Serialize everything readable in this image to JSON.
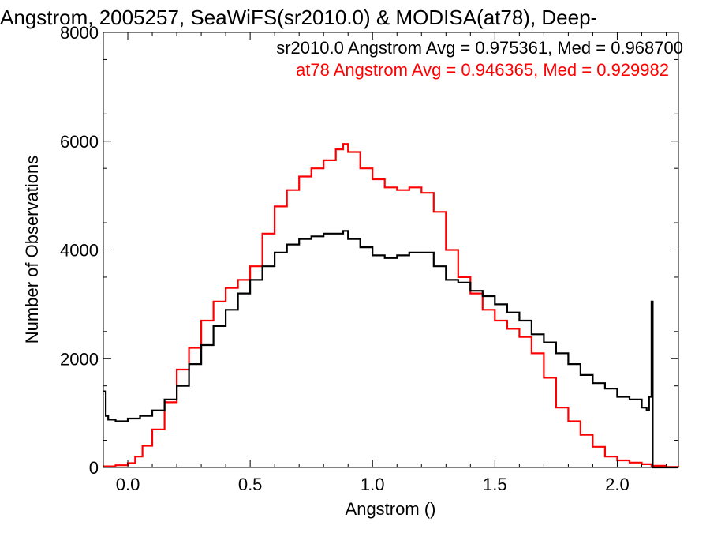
{
  "chart_data": {
    "type": "line",
    "title": "Angstrom, 2005257, SeaWiFS(sr2010.0) & MODISA(at78), Deep-",
    "xlabel": "Angstrom ()",
    "ylabel": "Number of Observations",
    "xlim": [
      -0.1,
      2.25
    ],
    "ylim": [
      0,
      8000
    ],
    "x_ticks": [
      0.0,
      0.5,
      1.0,
      1.5,
      2.0
    ],
    "x_tick_labels": [
      "0.0",
      "0.5",
      "1.0",
      "1.5",
      "2.0"
    ],
    "y_ticks": [
      0,
      2000,
      4000,
      6000,
      8000
    ],
    "y_tick_labels": [
      "0",
      "2000",
      "4000",
      "6000",
      "8000"
    ],
    "grid": false,
    "legend_position": "top-right",
    "stats": [
      {
        "text": "sr2010.0 Angstrom Avg = 0.975361, Med = 0.968700",
        "color": "#000000"
      },
      {
        "text": "at78 Angstrom Avg = 0.946365, Med = 0.929982",
        "color": "#ff0000"
      }
    ],
    "series": [
      {
        "color": "#000000",
        "x": [
          -0.1,
          -0.09,
          -0.08,
          -0.05,
          0.0,
          0.05,
          0.1,
          0.15,
          0.2,
          0.25,
          0.3,
          0.35,
          0.4,
          0.45,
          0.5,
          0.55,
          0.6,
          0.65,
          0.7,
          0.75,
          0.8,
          0.85,
          0.88,
          0.9,
          0.95,
          1.0,
          1.05,
          1.1,
          1.15,
          1.2,
          1.25,
          1.3,
          1.35,
          1.4,
          1.45,
          1.5,
          1.55,
          1.6,
          1.65,
          1.7,
          1.75,
          1.8,
          1.85,
          1.9,
          1.95,
          2.0,
          2.05,
          2.1,
          2.12,
          2.13,
          2.14,
          2.145,
          2.15,
          2.2,
          2.25
        ],
        "y": [
          1400,
          950,
          880,
          850,
          900,
          950,
          1050,
          1250,
          1500,
          1900,
          2250,
          2600,
          2900,
          3200,
          3450,
          3700,
          3950,
          4100,
          4200,
          4250,
          4300,
          4300,
          4350,
          4200,
          4050,
          3900,
          3850,
          3900,
          3950,
          3950,
          3700,
          3450,
          3400,
          3250,
          3150,
          3000,
          2850,
          2700,
          2450,
          2300,
          2100,
          1900,
          1700,
          1550,
          1450,
          1300,
          1250,
          1100,
          1050,
          1300,
          3050,
          0,
          0,
          0,
          0
        ]
      },
      {
        "color": "#ff0000",
        "x": [
          -0.1,
          -0.05,
          0.0,
          0.03,
          0.06,
          0.1,
          0.15,
          0.2,
          0.25,
          0.3,
          0.35,
          0.4,
          0.45,
          0.5,
          0.55,
          0.6,
          0.65,
          0.7,
          0.75,
          0.8,
          0.85,
          0.88,
          0.9,
          0.95,
          1.0,
          1.05,
          1.1,
          1.15,
          1.2,
          1.25,
          1.3,
          1.35,
          1.4,
          1.45,
          1.5,
          1.55,
          1.6,
          1.65,
          1.7,
          1.75,
          1.8,
          1.85,
          1.9,
          1.95,
          2.0,
          2.05,
          2.1,
          2.14,
          2.2,
          2.25
        ],
        "y": [
          20,
          40,
          80,
          200,
          400,
          700,
          1200,
          1800,
          2200,
          2700,
          3050,
          3300,
          3450,
          3700,
          4300,
          4800,
          5100,
          5350,
          5500,
          5650,
          5850,
          5950,
          5800,
          5500,
          5300,
          5150,
          5100,
          5150,
          5050,
          4700,
          4000,
          3500,
          3200,
          2900,
          2700,
          2550,
          2400,
          2100,
          1650,
          1100,
          850,
          600,
          380,
          200,
          130,
          90,
          60,
          30,
          10,
          0
        ]
      }
    ]
  }
}
